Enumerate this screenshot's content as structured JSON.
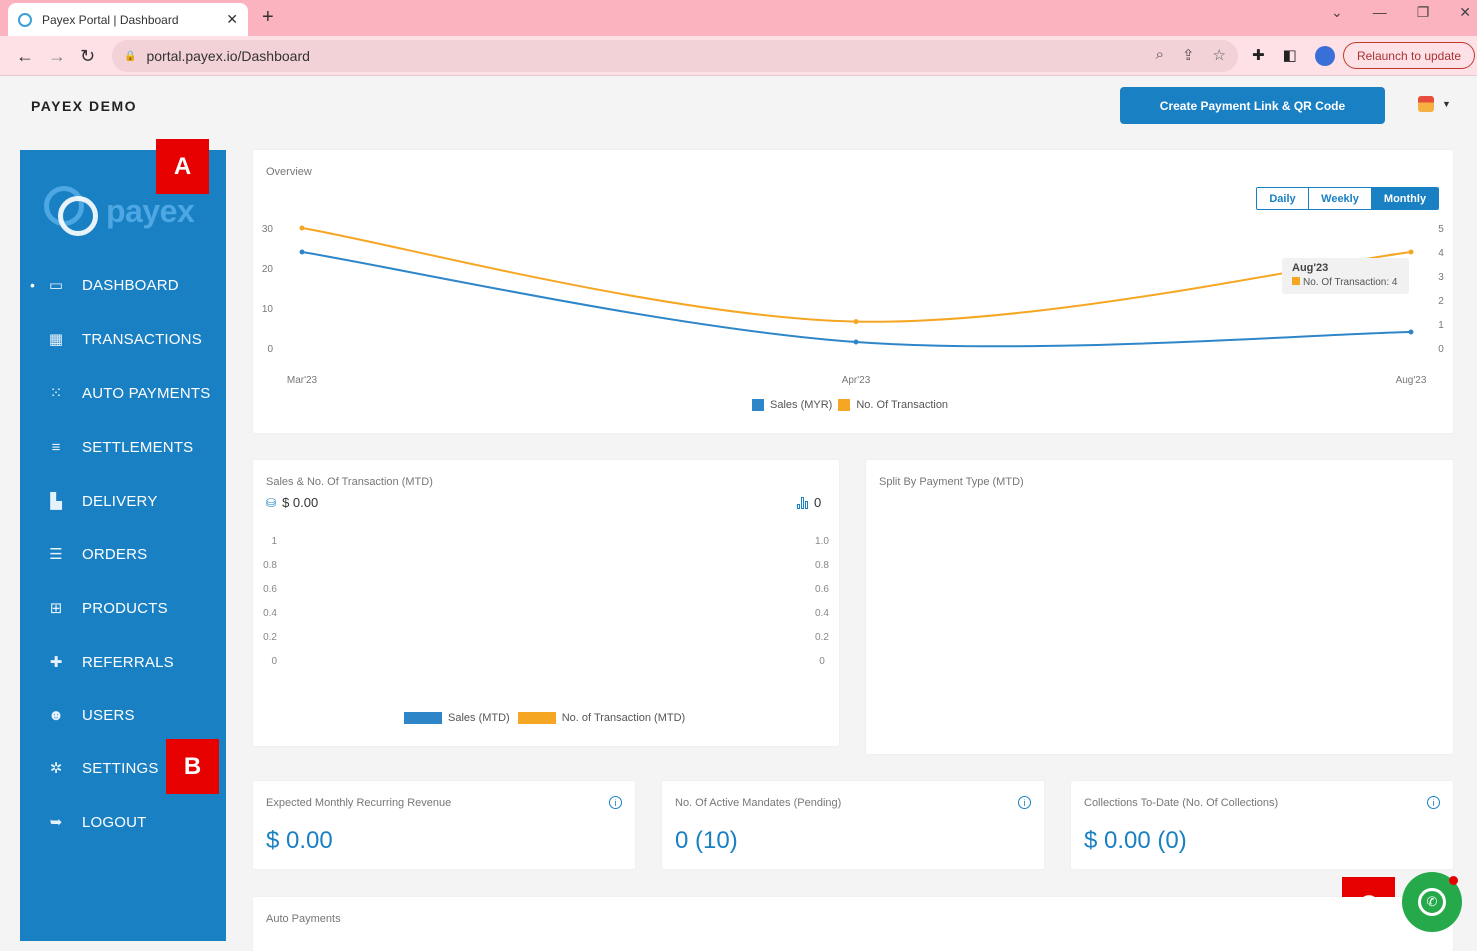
{
  "browser": {
    "tab_title": "Payex Portal | Dashboard",
    "tab_close": "✕",
    "new_tab": "+",
    "url": "portal.payex.io/Dashboard",
    "relaunch_label": "Relaunch to update"
  },
  "app": {
    "title": "PAYEX DEMO",
    "create_button": "Create Payment Link & QR Code",
    "logo_text": "payex"
  },
  "sidebar": {
    "items": [
      {
        "label": "DASHBOARD",
        "icon": "laptop-icon",
        "active": true
      },
      {
        "label": "TRANSACTIONS",
        "icon": "grid-icon"
      },
      {
        "label": "AUTO PAYMENTS",
        "icon": "spinner-icon"
      },
      {
        "label": "SETTLEMENTS",
        "icon": "database-icon"
      },
      {
        "label": "DELIVERY",
        "icon": "truck-icon"
      },
      {
        "label": "ORDERS",
        "icon": "list-icon"
      },
      {
        "label": "PRODUCTS",
        "icon": "cart-icon"
      },
      {
        "label": "REFERRALS",
        "icon": "user-plus-icon"
      },
      {
        "label": "USERS",
        "icon": "users-icon"
      },
      {
        "label": "SETTINGS",
        "icon": "gears-icon"
      },
      {
        "label": "LOGOUT",
        "icon": "sign-out-icon"
      }
    ]
  },
  "markers": {
    "a": "A",
    "b": "B",
    "c": "C"
  },
  "overview": {
    "title": "Overview",
    "range_buttons": [
      "Daily",
      "Weekly",
      "Monthly"
    ],
    "active_range": "Monthly",
    "tooltip": {
      "title": "Aug'23",
      "text": "No. Of Transaction: 4"
    }
  },
  "mtd": {
    "title": "Sales & No. Of Transaction (MTD)",
    "sales_value": "$ 0.00",
    "txn_value": "0"
  },
  "split": {
    "title": "Split By Payment Type (MTD)"
  },
  "kpis": [
    {
      "title": "Expected Monthly Recurring Revenue",
      "value": "$ 0.00"
    },
    {
      "title": "No. Of Active Mandates (Pending)",
      "value": "0 (10)"
    },
    {
      "title": "Collections To-Date (No. Of Collections)",
      "value": "$ 0.00 (0)"
    }
  ],
  "auto_payments": {
    "title": "Auto Payments"
  },
  "colors": {
    "primary": "#1a80c4",
    "sales": "#2e86c9",
    "transactions": "#f5a623",
    "marker": "#e60000",
    "whatsapp": "#25a94b"
  },
  "chart_data": [
    {
      "type": "line",
      "categories": [
        "Mar'23",
        "Apr'23",
        "Aug'23"
      ],
      "series": [
        {
          "name": "Sales (MYR)",
          "axis": "left",
          "values": [
            24,
            1.5,
            4
          ]
        },
        {
          "name": "No. Of Transaction",
          "axis": "right",
          "values": [
            5,
            1.1,
            4
          ]
        }
      ],
      "y_left_ticks": [
        "30",
        "20",
        "10",
        "0"
      ],
      "y_right_ticks": [
        "5",
        "4",
        "3",
        "2",
        "1",
        "0"
      ],
      "y_left_range": [
        0,
        30
      ],
      "y_right_range": [
        0,
        5
      ],
      "legend_position": "bottom"
    },
    {
      "type": "bar",
      "categories": [],
      "series": [
        {
          "name": "Sales (MTD)",
          "values": []
        },
        {
          "name": "No. of Transaction (MTD)",
          "values": []
        }
      ],
      "y_left_ticks": [
        "1",
        "0.8",
        "0.6",
        "0.4",
        "0.2",
        "0"
      ],
      "y_right_ticks": [
        "1.0",
        "0.8",
        "0.6",
        "0.4",
        "0.2",
        "0"
      ],
      "y_left_range": [
        0,
        1
      ],
      "y_right_range": [
        0,
        1
      ],
      "legend_position": "bottom"
    }
  ]
}
